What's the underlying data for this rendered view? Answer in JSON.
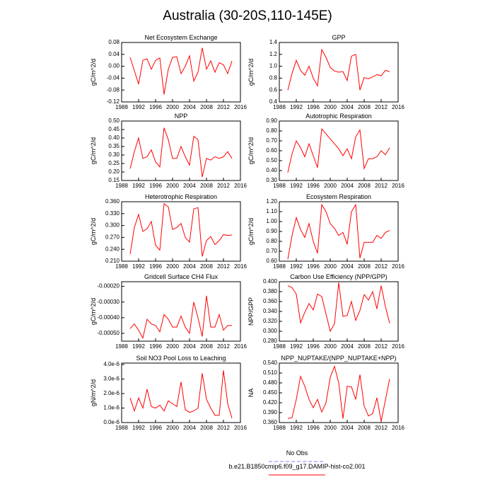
{
  "title": "Australia (30-20S,110-145E)",
  "legend": [
    {
      "name": "No Obs",
      "color": "#8080ff",
      "dash": true
    },
    {
      "name": "b.e21.B1850cmip6.f09_g17.DAMIP-hist-co2.001",
      "color": "#ff0000",
      "dash": false
    }
  ],
  "chart_data": [
    {
      "type": "line",
      "title": "Net Ecosystem Exchange",
      "ylabel": "gC/m^2/d",
      "color": "#ff0000",
      "x": [
        1990,
        1991,
        1992,
        1993,
        1994,
        1995,
        1996,
        1997,
        1998,
        1999,
        2000,
        2001,
        2002,
        2003,
        2004,
        2005,
        2006,
        2007,
        2008,
        2009,
        2010,
        2011,
        2012,
        2013,
        2014
      ],
      "values": [
        0.03,
        -0.015,
        -0.06,
        0.02,
        0.025,
        -0.01,
        0.02,
        0.028,
        -0.095,
        -0.01,
        0.03,
        0.032,
        -0.025,
        0.0,
        0.035,
        -0.05,
        -0.02,
        0.062,
        -0.01,
        0.018,
        -0.02,
        0.012,
        0.005,
        -0.025,
        0.018
      ],
      "xlim": [
        1988,
        2016
      ],
      "xticks": [
        1988,
        1992,
        1996,
        2000,
        2004,
        2008,
        2012,
        2016
      ],
      "ylim": [
        -0.12,
        0.08
      ],
      "yticks": [
        -0.12,
        -0.08,
        -0.04,
        {
          "value": 0,
          "label": "0.00"
        },
        0.04,
        0.08
      ]
    },
    {
      "type": "line",
      "title": "GPP",
      "ylabel": "gC/m^2/d",
      "color": "#ff0000",
      "x": [
        1990,
        1991,
        1992,
        1993,
        1994,
        1995,
        1996,
        1997,
        1998,
        1999,
        2000,
        2001,
        2002,
        2003,
        2004,
        2005,
        2006,
        2007,
        2008,
        2009,
        2010,
        2011,
        2012,
        2013,
        2014
      ],
      "values": [
        0.6,
        0.88,
        1.1,
        0.93,
        0.85,
        1.0,
        0.8,
        0.67,
        1.28,
        1.15,
        0.98,
        0.92,
        0.9,
        0.91,
        0.76,
        1.17,
        1.2,
        0.6,
        0.81,
        0.79,
        0.82,
        0.86,
        0.84,
        0.93,
        0.91
      ],
      "xlim": [
        1988,
        2016
      ],
      "xticks": [
        1988,
        1992,
        1996,
        2000,
        2004,
        2008,
        2012,
        2016
      ],
      "ylim": [
        0.4,
        1.4
      ],
      "yticks": [
        0.4,
        0.6,
        0.8,
        {
          "value": 1,
          "label": "1.0"
        },
        1.2,
        1.4
      ]
    },
    {
      "type": "line",
      "title": "NPP",
      "ylabel": "gC/m^2/d",
      "color": "#ff0000",
      "x": [
        1990,
        1991,
        1992,
        1993,
        1994,
        1995,
        1996,
        1997,
        1998,
        1999,
        2000,
        2001,
        2002,
        2003,
        2004,
        2005,
        2006,
        2007,
        2008,
        2009,
        2010,
        2011,
        2012,
        2013,
        2014
      ],
      "values": [
        0.22,
        0.32,
        0.4,
        0.28,
        0.29,
        0.33,
        0.26,
        0.23,
        0.46,
        0.39,
        0.28,
        0.28,
        0.35,
        0.29,
        0.24,
        0.41,
        0.39,
        0.17,
        0.28,
        0.27,
        0.29,
        0.28,
        0.29,
        0.32,
        0.28
      ],
      "xlim": [
        1988,
        2016
      ],
      "xticks": [
        1988,
        1992,
        1996,
        2000,
        2004,
        2008,
        2012,
        2016
      ],
      "ylim": [
        0.15,
        0.5
      ],
      "yticks": [
        0.15,
        {
          "value": 0.2,
          "label": "0.20"
        },
        0.25,
        {
          "value": 0.3,
          "label": "0.30"
        },
        0.35,
        {
          "value": 0.4,
          "label": "0.40"
        },
        0.45,
        {
          "value": 0.5,
          "label": "0.50"
        }
      ]
    },
    {
      "type": "line",
      "title": "Autotrophic Respiration",
      "ylabel": "gC/m^2/d",
      "color": "#ff0000",
      "x": [
        1990,
        1991,
        1992,
        1993,
        1994,
        1995,
        1996,
        1997,
        1998,
        1999,
        2000,
        2001,
        2002,
        2003,
        2004,
        2005,
        2006,
        2007,
        2008,
        2009,
        2010,
        2011,
        2012,
        2013,
        2014
      ],
      "values": [
        0.38,
        0.57,
        0.7,
        0.63,
        0.54,
        0.67,
        0.55,
        0.43,
        0.82,
        0.77,
        0.72,
        0.67,
        0.62,
        0.55,
        0.62,
        0.52,
        0.74,
        0.81,
        0.42,
        0.52,
        0.52,
        0.54,
        0.6,
        0.56,
        0.63
      ],
      "xlim": [
        1988,
        2016
      ],
      "xticks": [
        1988,
        1992,
        1996,
        2000,
        2004,
        2008,
        2012,
        2016
      ],
      "ylim": [
        0.3,
        0.9
      ],
      "yticks": [
        {
          "value": 0.3,
          "label": "0.30"
        },
        {
          "value": 0.4,
          "label": "0.40"
        },
        {
          "value": 0.5,
          "label": "0.50"
        },
        {
          "value": 0.6,
          "label": "0.60"
        },
        {
          "value": 0.7,
          "label": "0.70"
        },
        {
          "value": 0.8,
          "label": "0.80"
        },
        {
          "value": 0.9,
          "label": "0.90"
        }
      ]
    },
    {
      "type": "line",
      "title": "Heterotrophic Respiration",
      "ylabel": "gC/m^2/d",
      "color": "#ff0000",
      "x": [
        1990,
        1991,
        1992,
        1993,
        1994,
        1995,
        1996,
        1997,
        1998,
        1999,
        2000,
        2001,
        2002,
        2003,
        2004,
        2005,
        2006,
        2007,
        2008,
        2009,
        2010,
        2011,
        2012,
        2013,
        2014
      ],
      "values": [
        0.228,
        0.295,
        0.328,
        0.285,
        0.292,
        0.31,
        0.25,
        0.238,
        0.355,
        0.347,
        0.29,
        0.295,
        0.305,
        0.27,
        0.258,
        0.342,
        0.345,
        0.222,
        0.262,
        0.272,
        0.252,
        0.262,
        0.277,
        0.275,
        0.276
      ],
      "xlim": [
        1988,
        2016
      ],
      "xticks": [
        1988,
        1992,
        1996,
        2000,
        2004,
        2008,
        2012,
        2016
      ],
      "ylim": [
        0.21,
        0.36
      ],
      "yticks": [
        {
          "value": 0.21,
          "label": "0.210"
        },
        {
          "value": 0.24,
          "label": "0.240"
        },
        {
          "value": 0.27,
          "label": "0.270"
        },
        {
          "value": 0.3,
          "label": "0.300"
        },
        {
          "value": 0.33,
          "label": "0.330"
        },
        {
          "value": 0.36,
          "label": "0.360"
        }
      ]
    },
    {
      "type": "line",
      "title": "Ecosystem Respiration",
      "ylabel": "gC/m^2/d",
      "color": "#ff0000",
      "x": [
        1990,
        1991,
        1992,
        1993,
        1994,
        1995,
        1996,
        1997,
        1998,
        1999,
        2000,
        2001,
        2002,
        2003,
        2004,
        2005,
        2006,
        2007,
        2008,
        2009,
        2010,
        2011,
        2012,
        2013,
        2014
      ],
      "values": [
        0.62,
        0.86,
        1.04,
        0.92,
        0.84,
        0.98,
        0.8,
        0.68,
        1.17,
        1.1,
        0.98,
        0.93,
        0.86,
        0.89,
        0.77,
        1.1,
        1.17,
        0.63,
        0.79,
        0.79,
        0.79,
        0.86,
        0.83,
        0.89,
        0.91
      ],
      "xlim": [
        1988,
        2016
      ],
      "xticks": [
        1988,
        1992,
        1996,
        2000,
        2004,
        2008,
        2012,
        2016
      ],
      "ylim": [
        0.6,
        1.2
      ],
      "yticks": [
        {
          "value": 0.6,
          "label": "0.60"
        },
        {
          "value": 0.7,
          "label": "0.70"
        },
        {
          "value": 0.8,
          "label": "0.80"
        },
        {
          "value": 0.9,
          "label": "0.90"
        },
        {
          "value": 1,
          "label": "1.00"
        },
        {
          "value": 1.1,
          "label": "1.10"
        },
        {
          "value": 1.2,
          "label": "1.20"
        }
      ]
    },
    {
      "type": "line",
      "title": "Gridcell Surface CH4 Flux",
      "ylabel": "gC/m^2/d",
      "color": "#ff0000",
      "x": [
        1990,
        1991,
        1992,
        1993,
        1994,
        1995,
        1996,
        1997,
        1998,
        1999,
        2000,
        2001,
        2002,
        2003,
        2004,
        2005,
        2006,
        2007,
        2008,
        2009,
        2010,
        2011,
        2012,
        2013,
        2014
      ],
      "values": [
        -0.00047,
        -0.00044,
        -0.00048,
        -0.00053,
        -0.00041,
        -0.00044,
        -0.00045,
        -0.00049,
        -0.00038,
        -0.00041,
        -0.00046,
        -0.00046,
        -0.00039,
        -0.00046,
        -0.0005,
        -0.0003,
        -0.0004,
        -0.00052,
        -0.00026,
        -0.00046,
        -0.00046,
        -0.00038,
        -0.00048,
        -0.00045,
        -0.00045
      ],
      "xlim": [
        1988,
        2016
      ],
      "xticks": [
        1988,
        1992,
        1996,
        2000,
        2004,
        2008,
        2012,
        2016
      ],
      "ylim": [
        -0.00055,
        -0.00017
      ],
      "yticks": [
        {
          "value": -0.0005,
          "label": "-0.00050"
        },
        {
          "value": -0.0004,
          "label": "-0.00040"
        },
        {
          "value": -0.0003,
          "label": "-0.00030"
        },
        {
          "value": -0.0002,
          "label": "-0.00020"
        }
      ]
    },
    {
      "type": "line",
      "title": "Carbon Use Efficiency (NPP/GPP)",
      "ylabel": "NPP/GPP",
      "color": "#ff0000",
      "x": [
        1990,
        1991,
        1992,
        1993,
        1994,
        1995,
        1996,
        1997,
        1998,
        1999,
        2000,
        2001,
        2002,
        2003,
        2004,
        2005,
        2006,
        2007,
        2008,
        2009,
        2010,
        2011,
        2012,
        2013,
        2014
      ],
      "values": [
        0.392,
        0.388,
        0.375,
        0.317,
        0.338,
        0.356,
        0.343,
        0.375,
        0.37,
        0.335,
        0.3,
        0.315,
        0.398,
        0.33,
        0.332,
        0.36,
        0.322,
        0.342,
        0.374,
        0.363,
        0.38,
        0.345,
        0.392,
        0.35,
        0.316
      ],
      "xlim": [
        1988,
        2016
      ],
      "xticks": [
        1988,
        1992,
        1996,
        2000,
        2004,
        2008,
        2012,
        2016
      ],
      "ylim": [
        0.28,
        0.4
      ],
      "yticks": [
        {
          "value": 0.28,
          "label": "0.280"
        },
        {
          "value": 0.3,
          "label": "0.300"
        },
        {
          "value": 0.32,
          "label": "0.320"
        },
        {
          "value": 0.34,
          "label": "0.340"
        },
        {
          "value": 0.36,
          "label": "0.360"
        },
        {
          "value": 0.38,
          "label": "0.380"
        },
        {
          "value": 0.4,
          "label": "0.400"
        }
      ]
    },
    {
      "type": "line",
      "title": "Soil NO3 Pool Loss to Leaching",
      "ylabel": "gN/m^2/d",
      "color": "#ff0000",
      "x": [
        1990,
        1991,
        1992,
        1993,
        1994,
        1995,
        1996,
        1997,
        1998,
        1999,
        2000,
        2001,
        2002,
        2003,
        2004,
        2005,
        2006,
        2007,
        2008,
        2009,
        2010,
        2011,
        2012,
        2013,
        2014
      ],
      "values": [
        1.7e-06,
        8e-07,
        1.7e-06,
        1e-06,
        2.3e-06,
        1.1e-06,
        1e-06,
        1.2e-06,
        8e-07,
        1.5e-06,
        1.3e-06,
        1.1e-06,
        2.8e-06,
        9e-07,
        7e-07,
        8e-07,
        1e-06,
        3.4e-06,
        1.6e-06,
        1e-06,
        5e-07,
        5e-07,
        3.6e-06,
        1.3e-06,
        3e-07
      ],
      "xlim": [
        1988,
        2016
      ],
      "xticks": [
        1988,
        1992,
        1996,
        2000,
        2004,
        2008,
        2012,
        2016
      ],
      "ylim": [
        0,
        4.1e-06
      ],
      "yticks": [
        {
          "value": 0,
          "label": "0.0e-6"
        },
        {
          "value": 1e-06,
          "label": "1.0e-6"
        },
        {
          "value": 2e-06,
          "label": "2.0e-6"
        },
        {
          "value": 3e-06,
          "label": "3.0e-6"
        },
        {
          "value": 4e-06,
          "label": "4.0e-6"
        }
      ]
    },
    {
      "type": "line",
      "title": "NPP_NUPTAKE/(NPP_NUPTAKE+NPP)",
      "ylabel": "NA",
      "color": "#ff0000",
      "x": [
        1990,
        1991,
        1992,
        1993,
        1994,
        1995,
        1996,
        1997,
        1998,
        1999,
        2000,
        2001,
        2002,
        2003,
        2004,
        2005,
        2006,
        2007,
        2008,
        2009,
        2010,
        2011,
        2012,
        2013,
        2014
      ],
      "values": [
        0.372,
        0.375,
        0.43,
        0.5,
        0.47,
        0.43,
        0.405,
        0.43,
        0.392,
        0.42,
        0.497,
        0.53,
        0.48,
        0.372,
        0.47,
        0.468,
        0.43,
        0.505,
        0.41,
        0.38,
        0.387,
        0.435,
        0.364,
        0.428,
        0.492
      ],
      "xlim": [
        1988,
        2016
      ],
      "xticks": [
        1988,
        1992,
        1996,
        2000,
        2004,
        2008,
        2012,
        2016
      ],
      "ylim": [
        0.36,
        0.54
      ],
      "yticks": [
        {
          "value": 0.36,
          "label": "0.360"
        },
        {
          "value": 0.39,
          "label": "0.390"
        },
        {
          "value": 0.42,
          "label": "0.420"
        },
        {
          "value": 0.45,
          "label": "0.450"
        },
        {
          "value": 0.48,
          "label": "0.480"
        },
        {
          "value": 0.51,
          "label": "0.510"
        },
        {
          "value": 0.54,
          "label": "0.540"
        }
      ]
    }
  ]
}
